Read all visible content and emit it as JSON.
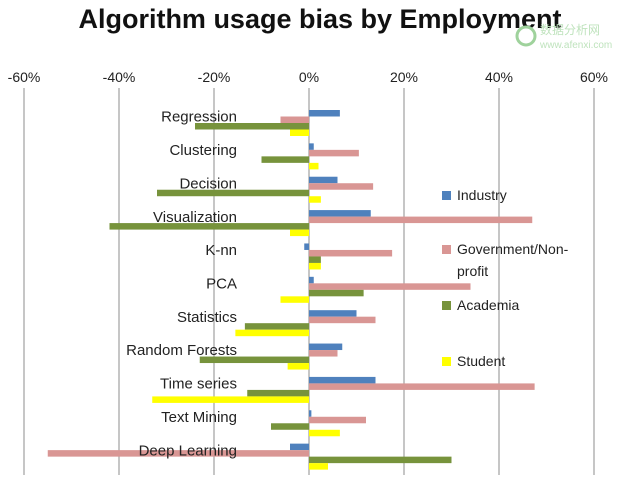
{
  "chart_data": {
    "type": "bar",
    "orientation": "horizontal",
    "title": "Algorithm usage bias by Employment",
    "xlim": [
      -0.6,
      0.6
    ],
    "x_ticks": [
      "-60%",
      "-40%",
      "-20%",
      "0%",
      "20%",
      "40%",
      "60%"
    ],
    "x_tick_values": [
      -0.6,
      -0.4,
      -0.2,
      0,
      0.2,
      0.4,
      0.6
    ],
    "grid": true,
    "legend_position": "right",
    "categories": [
      "Regression",
      "Clustering",
      "Decision",
      "Visualization",
      "K-nn",
      "PCA",
      "Statistics",
      "Random Forests",
      "Time series",
      "Text Mining",
      "Deep Learning"
    ],
    "series": [
      {
        "name": "Industry",
        "color": "#4f81bd",
        "values": [
          0.065,
          0.01,
          0.06,
          0.13,
          -0.01,
          0.01,
          0.1,
          0.07,
          0.14,
          0.005,
          -0.04
        ]
      },
      {
        "name": "Government/Non-profit",
        "color": "#d99694",
        "values": [
          -0.06,
          0.105,
          0.135,
          0.47,
          0.175,
          0.34,
          0.14,
          0.06,
          0.475,
          0.12,
          -0.55
        ]
      },
      {
        "name": "Academia",
        "color": "#77933c",
        "values": [
          -0.24,
          -0.1,
          -0.32,
          -0.42,
          0.025,
          0.115,
          -0.135,
          -0.23,
          -0.13,
          -0.08,
          0.3
        ]
      },
      {
        "name": "Student",
        "color": "#ffff00",
        "values": [
          -0.04,
          0.02,
          0.025,
          -0.04,
          0.025,
          -0.06,
          -0.155,
          -0.045,
          -0.33,
          0.065,
          0.04
        ]
      }
    ]
  },
  "watermark": {
    "line1": "数据分析网",
    "line2": "www.afenxi.com"
  }
}
